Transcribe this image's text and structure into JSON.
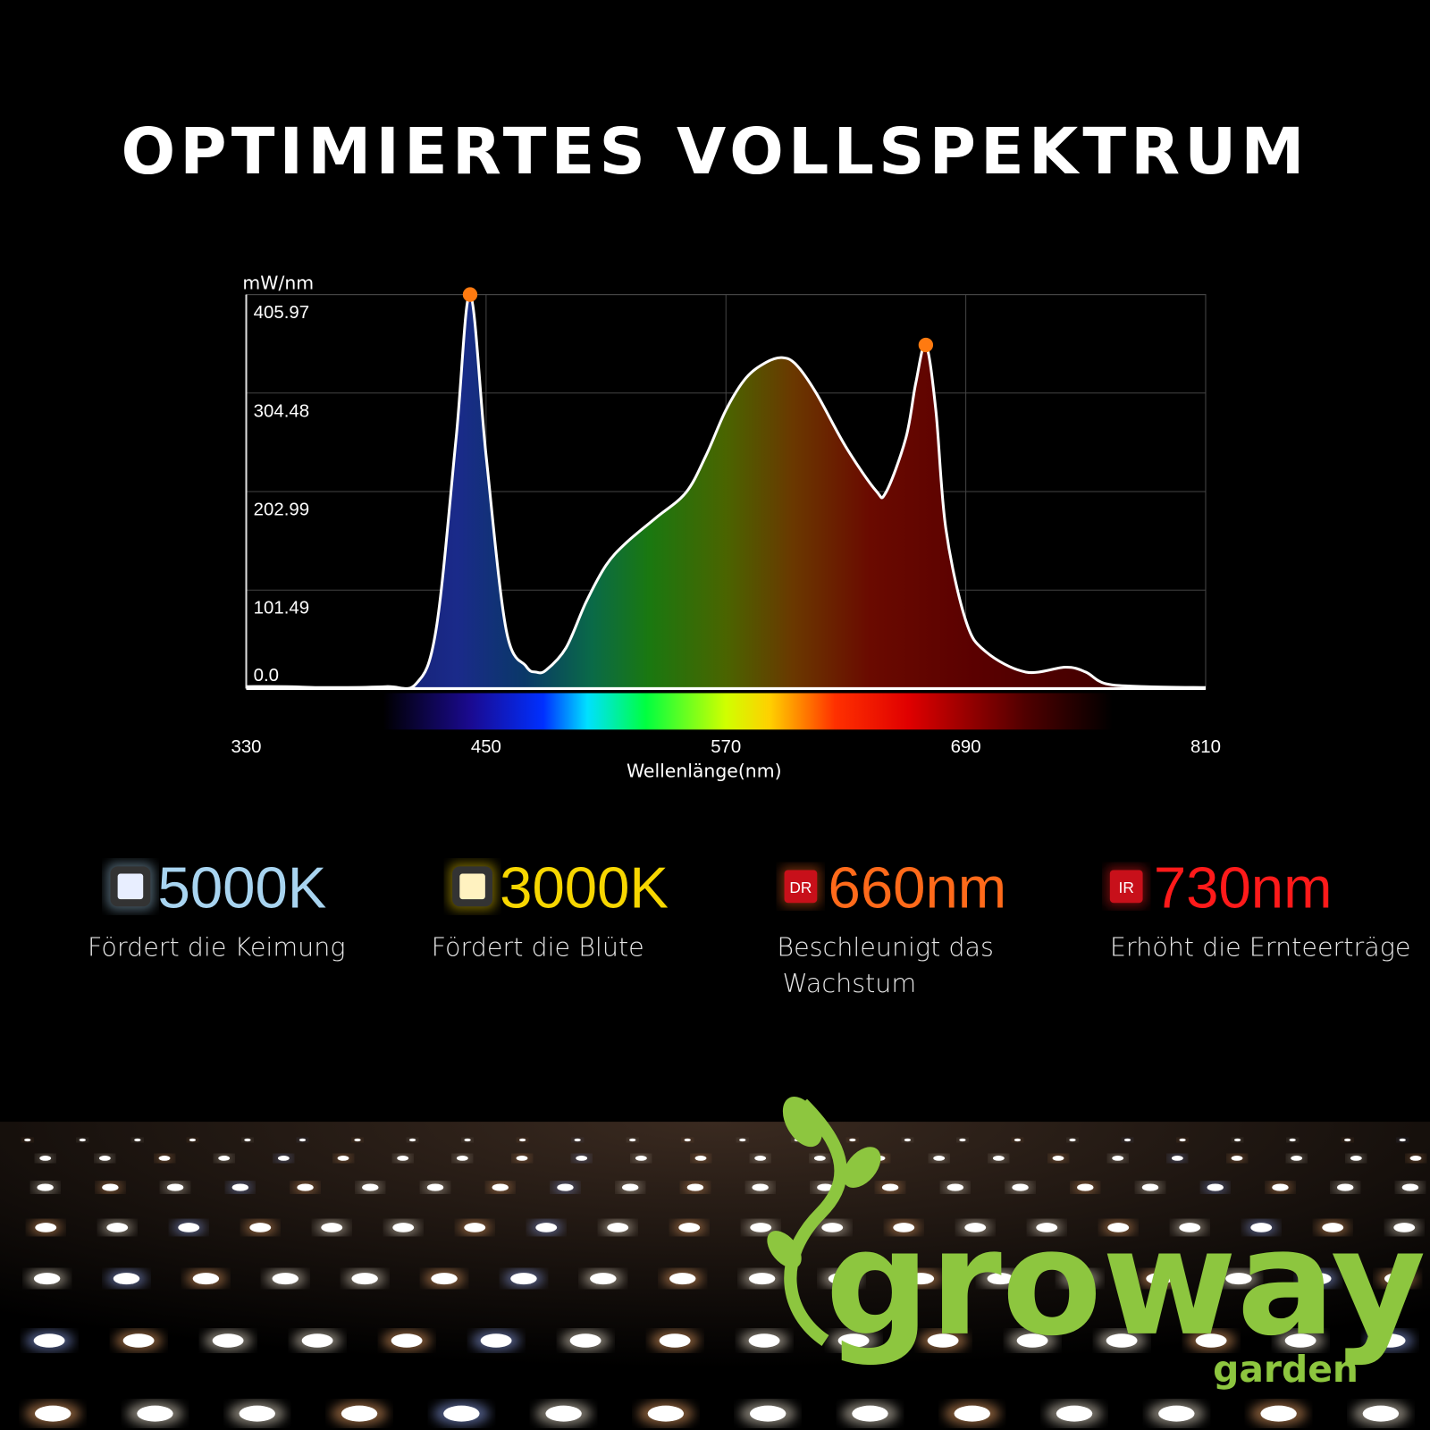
{
  "chart_data": {
    "type": "area",
    "title": "OPTIMIERTES VOLLSPEKTRUM",
    "y_unit": "mW/nm",
    "xlabel": "Wellenlänge(nm)",
    "x": [
      330,
      350,
      370,
      400,
      415,
      425,
      435,
      442,
      450,
      460,
      470,
      475,
      480,
      490,
      500,
      510,
      520,
      535,
      550,
      560,
      570,
      580,
      590,
      598,
      605,
      615,
      630,
      645,
      650,
      660,
      665,
      670,
      675,
      680,
      690,
      700,
      720,
      740,
      750,
      760,
      780,
      810
    ],
    "series": [
      {
        "color": "#ffffff",
        "values": [
          2,
          2,
          1,
          2,
          5,
          61,
          258,
          405.97,
          240,
          61,
          23,
          17,
          19,
          42,
          89,
          127,
          150,
          176,
          202,
          240,
          287,
          320,
          336,
          341,
          334,
          305,
          249,
          204,
          202,
          258,
          315,
          354,
          287,
          165,
          70,
          38,
          17,
          22,
          17,
          5,
          2,
          1
        ]
      }
    ],
    "peaks": [
      {
        "x": 442,
        "y": 405.97,
        "color": "#ff7a10"
      },
      {
        "x": 670,
        "y": 354,
        "color": "#ff7a10"
      }
    ],
    "xlim": [
      330,
      810
    ],
    "xticks": [
      330,
      450,
      570,
      690,
      810
    ],
    "ylim": [
      0,
      405.97
    ],
    "yticks": [
      {
        "value": 0,
        "label": "0.0"
      },
      101.49,
      202.99,
      304.48,
      405.97
    ],
    "grid": true
  },
  "features": [
    {
      "value": "5000K",
      "color": "#a8d4f0",
      "lines": [
        "Fördert die Keimung"
      ]
    },
    {
      "value": "3000K",
      "color": "#f7d600",
      "lines": [
        "Fördert die Blüte"
      ]
    },
    {
      "badge": "DR",
      "value": "660nm",
      "color": "#ff6a1a",
      "lines": [
        "Beschleunigt das",
        "Wachstum"
      ]
    },
    {
      "badge": "IR",
      "value": "730nm",
      "color": "#ff1a1a",
      "lines": [
        "Erhöht die Ernteerträge"
      ]
    }
  ],
  "logo": {
    "name": "groway",
    "sub": "garden"
  }
}
